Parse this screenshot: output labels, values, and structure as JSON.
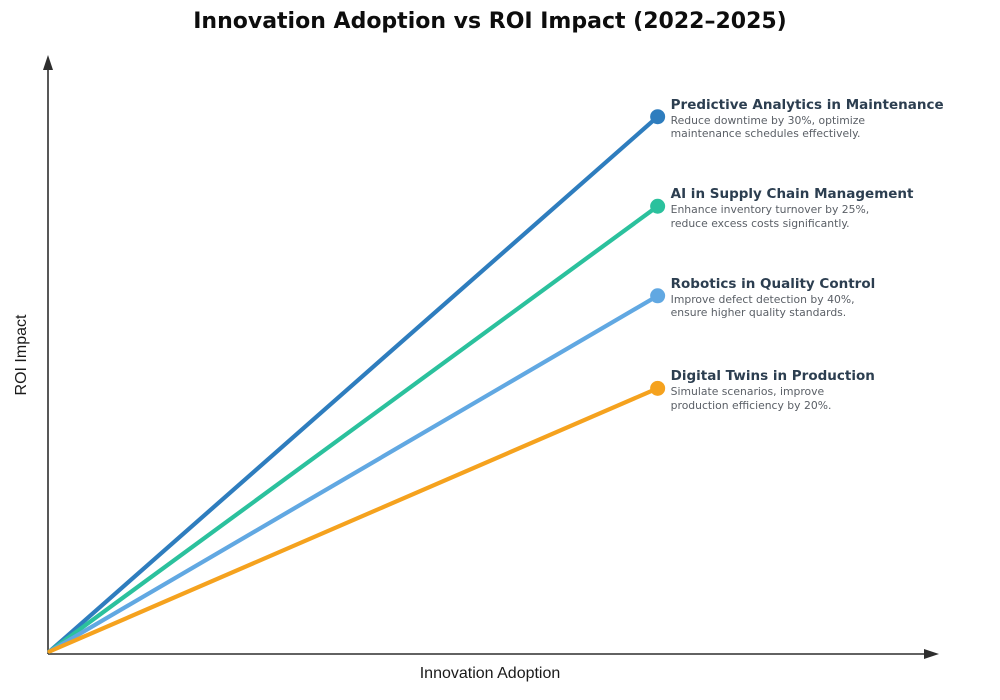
{
  "chart_data": {
    "type": "line",
    "title": "Innovation Adoption vs ROI Impact (2022–2025)",
    "xlabel": "Innovation Adoption",
    "ylabel": "ROI Impact",
    "x_range": [
      0,
      1
    ],
    "y_range": [
      0,
      1
    ],
    "grid": false,
    "tick_labels": "none",
    "axis_arrows": true,
    "axis_color": "#2e2e2e",
    "legend": "none — series labeled by annotations at line endpoints",
    "series": [
      {
        "name": "Predictive Analytics in Maintenance",
        "desc_lines": [
          "Reduce downtime by 30%, optimize",
          "maintenance schedules effectively."
        ],
        "color": "#2E7DBE",
        "x": [
          0,
          0.685
        ],
        "y": [
          0,
          0.9
        ]
      },
      {
        "name": "AI in Supply Chain Management",
        "desc_lines": [
          "Enhance inventory turnover by 25%,",
          "reduce excess costs significantly."
        ],
        "color": "#2BC19D",
        "x": [
          0,
          0.685
        ],
        "y": [
          0,
          0.75
        ]
      },
      {
        "name": "Robotics in Quality Control",
        "desc_lines": [
          "Improve defect detection by 40%,",
          "ensure higher quality standards."
        ],
        "color": "#61A8E2",
        "x": [
          0,
          0.685
        ],
        "y": [
          0,
          0.6
        ]
      },
      {
        "name": "Digital Twins in Production",
        "desc_lines": [
          "Simulate scenarios, improve",
          "production efficiency by 20%."
        ],
        "color": "#F5A21E",
        "x": [
          0,
          0.685
        ],
        "y": [
          0,
          0.445
        ]
      }
    ]
  }
}
